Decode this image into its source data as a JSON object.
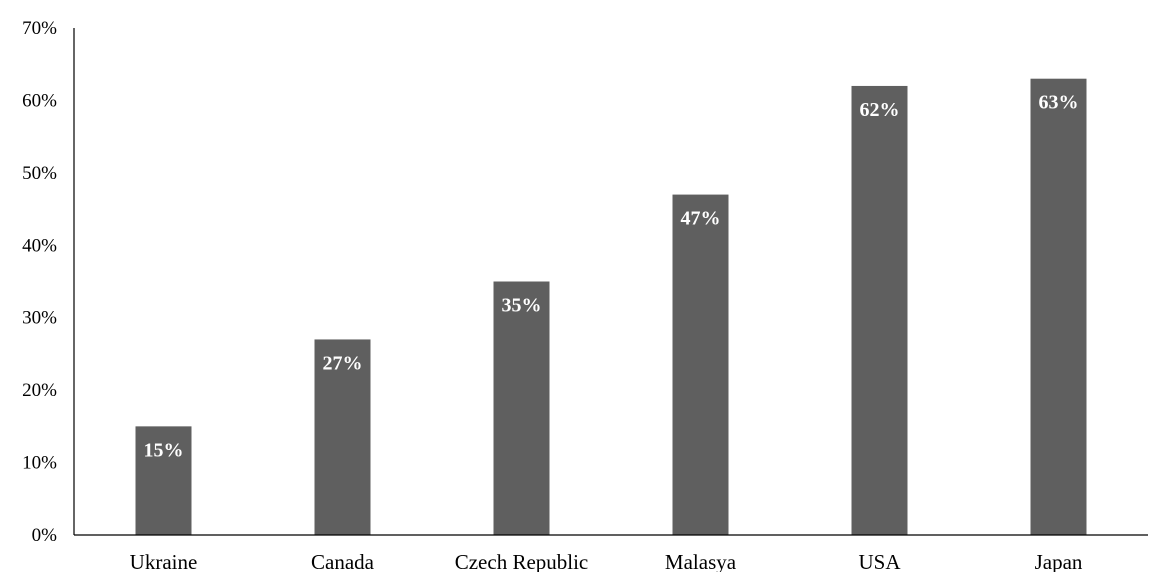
{
  "chart_data": {
    "type": "bar",
    "categories": [
      "Ukraine",
      "Canada",
      "Czech Republic",
      "Malasya",
      "USA",
      "Japan"
    ],
    "values": [
      15,
      27,
      35,
      47,
      62,
      63
    ],
    "data_labels": [
      "15%",
      "27%",
      "35%",
      "47%",
      "62%",
      "63%"
    ],
    "y_ticks": [
      {
        "value": 0,
        "label": "0%"
      },
      {
        "value": 10,
        "label": "10%"
      },
      {
        "value": 20,
        "label": "20%"
      },
      {
        "value": 30,
        "label": "30%"
      },
      {
        "value": 40,
        "label": "40%"
      },
      {
        "value": 50,
        "label": "50%"
      },
      {
        "value": 60,
        "label": "60%"
      },
      {
        "value": 70,
        "label": "70%"
      }
    ],
    "ylim": [
      0,
      70
    ],
    "title": "",
    "xlabel": "",
    "ylabel": "",
    "grid": false,
    "legend": "none",
    "bar_color": "#5f5f5f",
    "label_color": "#ffffff"
  }
}
